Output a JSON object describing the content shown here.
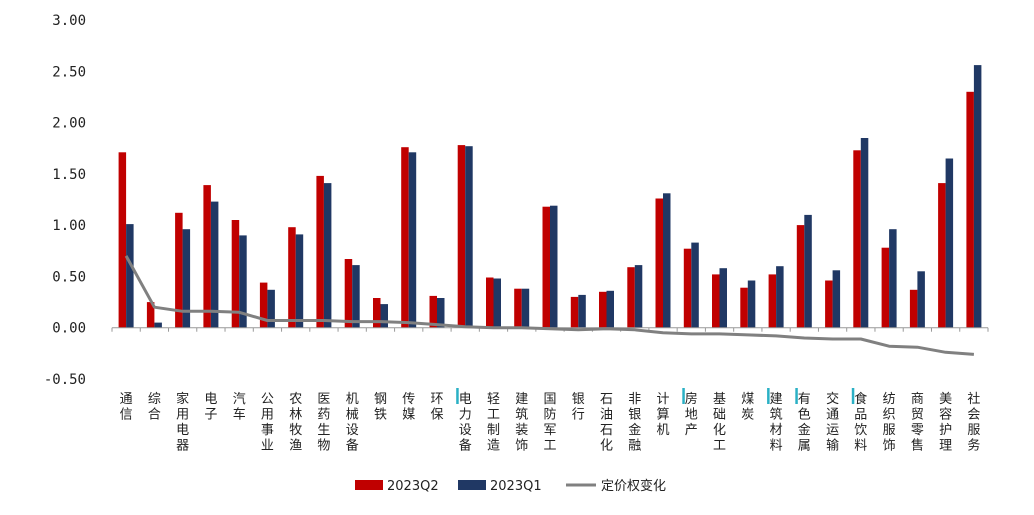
{
  "chart_data": {
    "type": "bar",
    "categories": [
      "通信",
      "综合",
      "家用电器",
      "电子",
      "汽车",
      "公用事业",
      "农林牧渔",
      "医药生物",
      "机械设备",
      "钢铁",
      "传媒",
      "环保",
      "电力设备",
      "轻工制造",
      "建筑装饰",
      "国防军工",
      "银行",
      "石油石化",
      "非银金融",
      "计算机",
      "房地产",
      "基础化工",
      "煤炭",
      "建筑材料",
      "有色金属",
      "交通运输",
      "食品饮料",
      "纺织服饰",
      "商贸零售",
      "美容护理",
      "社会服务"
    ],
    "highlighted_categories": [
      "电力设备",
      "房地产",
      "建筑材料",
      "有色金属",
      "食品饮料"
    ],
    "series": [
      {
        "name": "2023Q2",
        "kind": "bar",
        "color": "#c00000",
        "values": [
          1.71,
          0.25,
          1.12,
          1.39,
          1.05,
          0.44,
          0.98,
          1.48,
          0.67,
          0.29,
          1.76,
          0.31,
          1.78,
          0.49,
          0.38,
          1.18,
          0.3,
          0.35,
          0.59,
          1.26,
          0.77,
          0.52,
          0.39,
          0.52,
          1.0,
          0.46,
          1.73,
          0.78,
          0.37,
          1.41,
          2.3
        ]
      },
      {
        "name": "2023Q1",
        "kind": "bar",
        "color": "#203864",
        "values": [
          1.01,
          0.05,
          0.96,
          1.23,
          0.9,
          0.37,
          0.91,
          1.41,
          0.61,
          0.23,
          1.71,
          0.29,
          1.77,
          0.48,
          0.38,
          1.19,
          0.32,
          0.36,
          0.61,
          1.31,
          0.83,
          0.58,
          0.46,
          0.6,
          1.1,
          0.56,
          1.85,
          0.96,
          0.55,
          1.65,
          2.56
        ]
      },
      {
        "name": "定价权变化",
        "kind": "line",
        "color": "#808080",
        "values": [
          0.7,
          0.2,
          0.16,
          0.16,
          0.15,
          0.07,
          0.07,
          0.07,
          0.06,
          0.06,
          0.05,
          0.03,
          0.01,
          0.0,
          0.0,
          -0.01,
          -0.02,
          -0.01,
          -0.02,
          -0.05,
          -0.06,
          -0.06,
          -0.07,
          -0.08,
          -0.1,
          -0.11,
          -0.11,
          -0.18,
          -0.19,
          -0.24,
          -0.26
        ]
      }
    ],
    "yticks": [
      "3.00",
      "2.50",
      "2.00",
      "1.50",
      "1.00",
      "0.50",
      "0.00",
      "-0.50"
    ],
    "ylim": [
      -0.5,
      3.0
    ],
    "grid": false,
    "legend_position": "bottom",
    "highlight_marker_color": "#2ab0c5"
  }
}
